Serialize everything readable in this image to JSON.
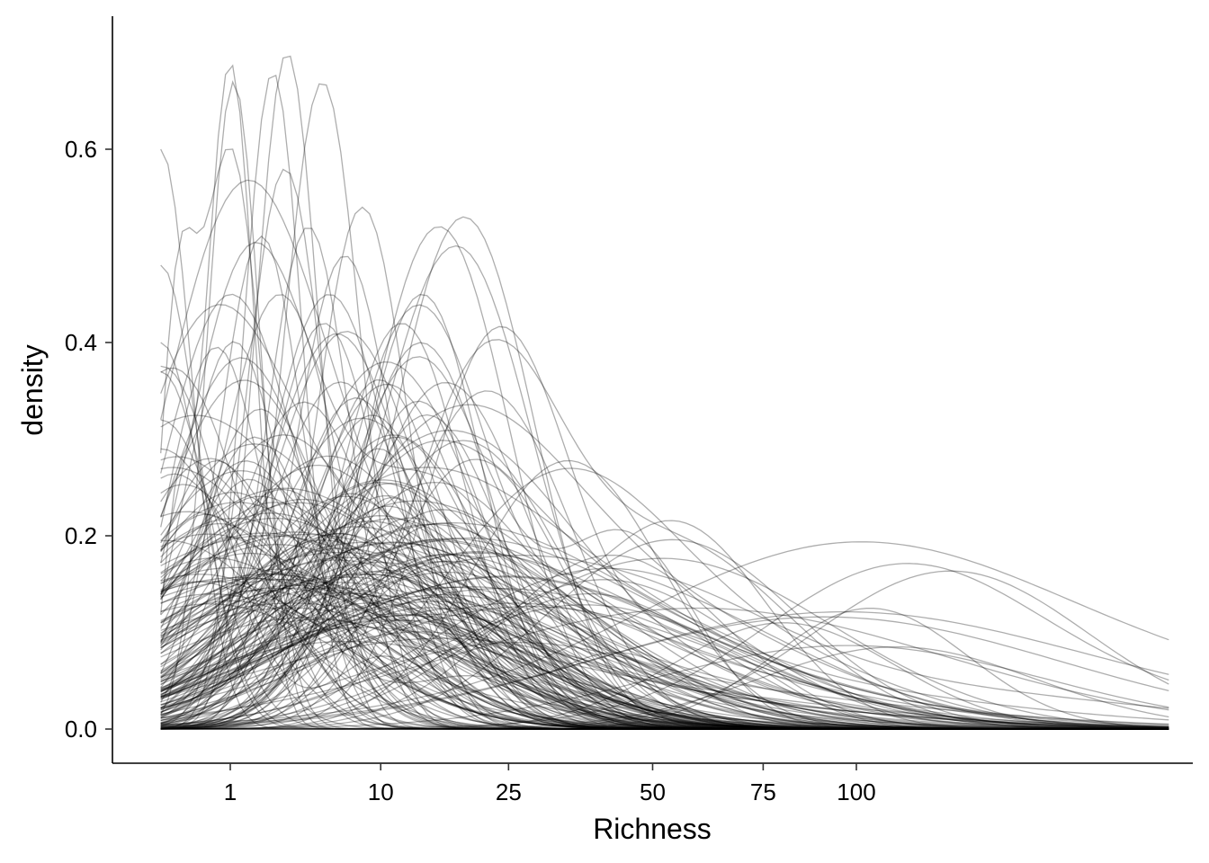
{
  "chart_data": {
    "type": "line",
    "title": "",
    "xlabel": "Richness",
    "ylabel": "density",
    "x_scale": "sqrt",
    "xlim": [
      0,
      210
    ],
    "ylim": [
      0,
      0.7
    ],
    "x_ticks": [
      1,
      10,
      25,
      50,
      75,
      100
    ],
    "x_tick_labels": [
      "1",
      "10",
      "25",
      "50",
      "75",
      "100"
    ],
    "y_ticks": [
      0.0,
      0.2,
      0.4,
      0.6
    ],
    "y_tick_labels": [
      "0.0",
      "0.2",
      "0.4",
      "0.6"
    ],
    "grid": false,
    "legend": "none",
    "line_color": "#000000",
    "line_opacity": 0.32,
    "n_series": 220,
    "series_shape": "many overlapping kernel density curves of richness per group; x in Richness units (sqrt axis), y = density",
    "series": [
      {
        "peaks": [
          [
            1.0,
            0.69,
            0.35
          ],
          [
            0.05,
            0.2,
            0.2
          ]
        ]
      },
      {
        "peaks": [
          [
            1.1,
            0.67,
            0.38
          ]
        ]
      },
      {
        "peaks": [
          [
            3.3,
            0.7,
            0.45
          ]
        ]
      },
      {
        "peaks": [
          [
            2.6,
            0.68,
            0.42
          ]
        ]
      },
      {
        "peaks": [
          [
            5.4,
            0.67,
            0.55
          ]
        ]
      },
      {
        "peaks": [
          [
            1.0,
            0.6,
            0.45
          ],
          [
            0.05,
            0.35,
            0.25
          ]
        ]
      },
      {
        "peaks": [
          [
            0.0,
            0.6,
            0.45
          ]
        ]
      },
      {
        "peaks": [
          [
            0.0,
            0.48,
            0.55
          ]
        ]
      },
      {
        "peaks": [
          [
            8.4,
            0.54,
            0.65
          ]
        ]
      },
      {
        "peaks": [
          [
            19.0,
            0.53,
            1.0
          ]
        ]
      },
      {
        "peaks": [
          [
            16.0,
            0.52,
            1.0
          ]
        ]
      },
      {
        "peaks": [
          [
            18.0,
            0.5,
            1.1
          ]
        ]
      },
      {
        "peaks": [
          [
            7.0,
            0.49,
            0.7
          ]
        ]
      },
      {
        "peaks": [
          [
            4.5,
            0.52,
            0.6
          ]
        ]
      },
      {
        "peaks": [
          [
            3.2,
            0.58,
            0.55
          ]
        ]
      },
      {
        "peaks": [
          [
            2.1,
            0.51,
            0.6
          ]
        ]
      },
      {
        "peaks": [
          [
            12.0,
            0.42,
            0.9
          ]
        ]
      },
      {
        "peaks": [
          [
            14.0,
            0.4,
            1.0
          ]
        ]
      },
      {
        "peaks": [
          [
            5.5,
            0.42,
            0.8
          ]
        ]
      },
      {
        "peaks": [
          [
            22.0,
            0.35,
            1.2
          ]
        ]
      },
      {
        "peaks": [
          [
            10.5,
            0.38,
            1.3
          ]
        ]
      },
      {
        "peaks": [
          [
            104.0,
            0.125,
            1.4
          ]
        ]
      },
      {
        "peaks": [
          [
            112.0,
            0.085,
            2.0
          ]
        ]
      },
      {
        "peaks": [
          [
            80.0,
            0.11,
            1.6
          ]
        ]
      },
      {
        "peaks": [
          [
            42.0,
            0.18,
            1.6
          ]
        ]
      },
      {
        "peaks": [
          [
            38.0,
            0.14,
            1.8
          ]
        ]
      },
      {
        "peaks": [
          [
            0.0,
            0.4,
            0.6
          ]
        ]
      },
      {
        "peaks": [
          [
            0.0,
            0.37,
            0.7
          ]
        ]
      },
      {
        "peaks": [
          [
            0.0,
            0.32,
            0.9
          ]
        ]
      },
      {
        "peaks": [
          [
            0.0,
            0.29,
            1.1
          ]
        ]
      },
      {
        "peaks": [
          [
            0.5,
            0.28,
            1.2
          ]
        ]
      }
    ]
  }
}
